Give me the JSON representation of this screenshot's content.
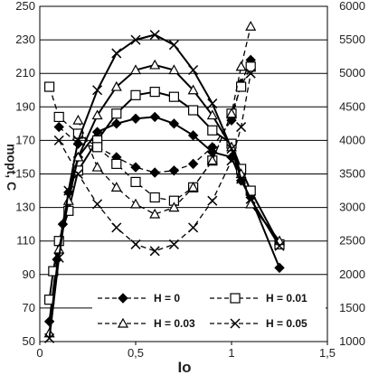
{
  "chart_data": {
    "type": "line",
    "xlabel": "Io",
    "ylabel": "mopt, C",
    "xlim": [
      0,
      1.5
    ],
    "ylim_left": [
      50,
      250
    ],
    "ylim_right": [
      1000,
      6000
    ],
    "x_ticks": [
      "0",
      "0,5",
      "1",
      "1,5"
    ],
    "y_ticks_left": [
      "50",
      "70",
      "90",
      "110",
      "130",
      "150",
      "170",
      "190",
      "210",
      "230",
      "250"
    ],
    "y_ticks_right": [
      "1000",
      "1500",
      "2000",
      "2500",
      "3000",
      "3500",
      "4000",
      "4500",
      "5000",
      "5500",
      "6000"
    ],
    "grid": "horizontal",
    "legend_position": "bottom",
    "series": [
      {
        "name": "H = 0",
        "marker": "diamond",
        "axis": "left",
        "dash": "solid",
        "color": "#000000",
        "points": [
          [
            0.05,
            62
          ],
          [
            0.09,
            99
          ],
          [
            0.12,
            120
          ],
          [
            0.15,
            139
          ],
          [
            0.2,
            160
          ],
          [
            0.3,
            175
          ],
          [
            0.4,
            180
          ],
          [
            0.5,
            183
          ],
          [
            0.6,
            184
          ],
          [
            0.7,
            180
          ],
          [
            0.8,
            173
          ],
          [
            0.9,
            163
          ],
          [
            1.0,
            160
          ],
          [
            1.05,
            146
          ],
          [
            1.1,
            136
          ],
          [
            1.25,
            94
          ]
        ]
      },
      {
        "name": "H = 0",
        "marker": "diamond",
        "axis": "right",
        "dash": "dashed",
        "color": "#000000",
        "points": [
          [
            0.1,
            4200
          ],
          [
            0.2,
            3950
          ],
          [
            0.3,
            3900
          ],
          [
            0.4,
            3750
          ],
          [
            0.5,
            3600
          ],
          [
            0.6,
            3520
          ],
          [
            0.7,
            3550
          ],
          [
            0.8,
            3650
          ],
          [
            0.9,
            3900
          ],
          [
            1.0,
            4300
          ],
          [
            1.05,
            4850
          ],
          [
            1.1,
            5200
          ]
        ]
      },
      {
        "name": "H = 0.01",
        "marker": "square",
        "axis": "left",
        "dash": "solid",
        "color": "#000000",
        "points": [
          [
            0.05,
            75
          ],
          [
            0.07,
            92
          ],
          [
            0.1,
            110
          ],
          [
            0.15,
            128
          ],
          [
            0.2,
            152
          ],
          [
            0.3,
            170
          ],
          [
            0.4,
            186
          ],
          [
            0.5,
            197
          ],
          [
            0.6,
            199
          ],
          [
            0.7,
            196
          ],
          [
            0.8,
            188
          ],
          [
            0.9,
            176
          ],
          [
            1.0,
            168
          ],
          [
            1.05,
            153
          ],
          [
            1.1,
            140
          ],
          [
            1.25,
            108
          ]
        ]
      },
      {
        "name": "H = 0.01",
        "marker": "square",
        "axis": "right",
        "dash": "dashed",
        "color": "#000000",
        "points": [
          [
            0.05,
            4800
          ],
          [
            0.1,
            4350
          ],
          [
            0.2,
            4100
          ],
          [
            0.3,
            3900
          ],
          [
            0.4,
            3650
          ],
          [
            0.5,
            3380
          ],
          [
            0.6,
            3150
          ],
          [
            0.7,
            3100
          ],
          [
            0.8,
            3300
          ],
          [
            0.9,
            3700
          ],
          [
            1.0,
            4400
          ],
          [
            1.05,
            4800
          ],
          [
            1.1,
            5100
          ]
        ]
      },
      {
        "name": "H = 0.03",
        "marker": "triangle",
        "axis": "left",
        "dash": "solid",
        "color": "#000000",
        "points": [
          [
            0.05,
            55
          ],
          [
            0.1,
            105
          ],
          [
            0.15,
            134
          ],
          [
            0.2,
            160
          ],
          [
            0.3,
            185
          ],
          [
            0.4,
            202
          ],
          [
            0.5,
            212
          ],
          [
            0.6,
            215
          ],
          [
            0.7,
            212
          ],
          [
            0.8,
            200
          ],
          [
            0.9,
            185
          ],
          [
            1.0,
            166
          ],
          [
            1.05,
            150
          ],
          [
            1.1,
            132
          ],
          [
            1.25,
            110
          ]
        ]
      },
      {
        "name": "H = 0.03",
        "marker": "triangle",
        "axis": "right",
        "dash": "dashed",
        "color": "#000000",
        "points": [
          [
            0.2,
            4300
          ],
          [
            0.3,
            3600
          ],
          [
            0.4,
            3300
          ],
          [
            0.5,
            3050
          ],
          [
            0.6,
            2900
          ],
          [
            0.7,
            3000
          ],
          [
            0.8,
            3300
          ],
          [
            0.9,
            3700
          ],
          [
            1.0,
            4400
          ],
          [
            1.05,
            5100
          ],
          [
            1.1,
            5700
          ]
        ]
      },
      {
        "name": "H = 0.05",
        "marker": "cross",
        "axis": "left",
        "dash": "solid",
        "color": "#000000",
        "points": [
          [
            0.05,
            52
          ],
          [
            0.1,
            100
          ],
          [
            0.15,
            140
          ],
          [
            0.2,
            170
          ],
          [
            0.3,
            200
          ],
          [
            0.4,
            222
          ],
          [
            0.5,
            230
          ],
          [
            0.6,
            233
          ],
          [
            0.7,
            227
          ],
          [
            0.8,
            212
          ],
          [
            0.9,
            192
          ],
          [
            1.0,
            165
          ],
          [
            1.05,
            147
          ],
          [
            1.1,
            135
          ],
          [
            1.25,
            107
          ]
        ]
      },
      {
        "name": "H = 0.05",
        "marker": "cross",
        "axis": "right",
        "dash": "dashed",
        "color": "#000000",
        "points": [
          [
            0.1,
            4000
          ],
          [
            0.2,
            3500
          ],
          [
            0.3,
            3050
          ],
          [
            0.4,
            2700
          ],
          [
            0.5,
            2450
          ],
          [
            0.6,
            2350
          ],
          [
            0.7,
            2450
          ],
          [
            0.8,
            2700
          ],
          [
            0.9,
            3100
          ],
          [
            1.0,
            3700
          ],
          [
            1.05,
            4200
          ],
          [
            1.1,
            5000
          ]
        ]
      }
    ],
    "legend": [
      {
        "label": "H = 0",
        "marker": "diamond"
      },
      {
        "label": "H = 0.01",
        "marker": "square"
      },
      {
        "label": "H = 0.03",
        "marker": "triangle"
      },
      {
        "label": "H = 0.05",
        "marker": "cross"
      }
    ]
  }
}
